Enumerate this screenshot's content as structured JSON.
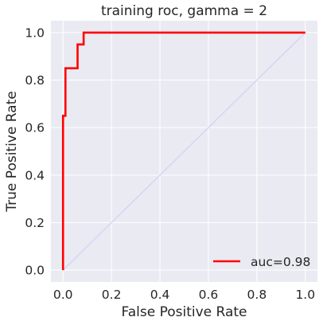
{
  "chart_data": {
    "type": "line",
    "title": "training roc, gamma = 2",
    "xlabel": "False Positive Rate",
    "ylabel": "True Positive Rate",
    "xlim": [
      -0.05,
      1.05
    ],
    "ylim": [
      -0.05,
      1.05
    ],
    "xticks": [
      0.0,
      0.2,
      0.4,
      0.6,
      0.8,
      1.0
    ],
    "yticks": [
      0.0,
      0.2,
      0.4,
      0.6,
      0.8,
      1.0
    ],
    "xtick_labels": [
      "0.0",
      "0.2",
      "0.4",
      "0.6",
      "0.8",
      "1.0"
    ],
    "ytick_labels": [
      "0.0",
      "0.2",
      "0.4",
      "0.6",
      "0.8",
      "1.0"
    ],
    "grid": true,
    "legend_position": "lower-right",
    "colors": {
      "background": "#eaeaf2",
      "grid": "#ffffff",
      "roc": "#ff0000",
      "reference": "#d6d6f7"
    },
    "series": [
      {
        "name": "auc=0.98",
        "role": "roc",
        "x": [
          0.0,
          0.0,
          0.01,
          0.01,
          0.06,
          0.06,
          0.085,
          0.085,
          1.0
        ],
        "y": [
          0.0,
          0.65,
          0.65,
          0.85,
          0.85,
          0.95,
          0.95,
          1.0,
          1.0
        ]
      },
      {
        "role": "reference",
        "x": [
          0.0,
          1.0
        ],
        "y": [
          0.0,
          1.0
        ]
      }
    ]
  }
}
